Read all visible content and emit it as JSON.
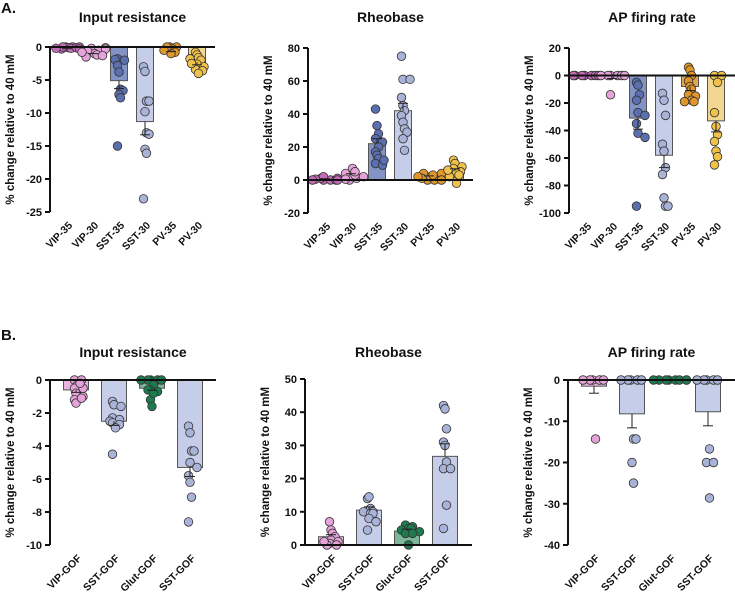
{
  "panel_letters": [
    "A.",
    "B."
  ],
  "chart_data": [
    {
      "type": "bar",
      "panel": "A",
      "title": "Input resistance",
      "ylabel": "% change relative to 40 mM",
      "ylim": [
        -25,
        0
      ],
      "yticks": [
        0,
        -5,
        -10,
        -15,
        -20,
        -25
      ],
      "categories": [
        "VIP-35",
        "VIP-30",
        "SST-35",
        "SST-30",
        "PV-35",
        "PV-30"
      ],
      "values": [
        -0.2,
        -0.8,
        -5.1,
        -11.3,
        -0.5,
        -2.3
      ],
      "sem": [
        0.05,
        0.2,
        1.2,
        2.0,
        0.2,
        0.4
      ],
      "points": [
        [
          0,
          0,
          -0.1,
          -0.2,
          -0.3,
          0,
          -0.1,
          -0.2,
          0,
          -0.3
        ],
        [
          -0.2,
          -0.5,
          -1.0,
          -1.2,
          -0.6,
          -0.1,
          -1.5,
          -0.8,
          -0.3,
          -1.3
        ],
        [
          -1.8,
          -2.0,
          -1.9,
          -2.8,
          -3.8,
          -6.4,
          -6.6,
          -7.2,
          -7.7,
          -15.0
        ],
        [
          -3.0,
          -3.7,
          -8.2,
          -8.2,
          -9.8,
          -13.0,
          -13.2,
          -15.5,
          -16.1,
          -23.0
        ],
        [
          0,
          0,
          -0.3,
          -0.8,
          -1.0,
          0,
          -0.5
        ],
        [
          -0.8,
          -1.2,
          -1.6,
          -2.0,
          -2.6,
          -3.0,
          -3.4,
          -3.6,
          -4.0,
          -1.8,
          -2.5
        ]
      ],
      "bar_colors": [
        "#c77bbd",
        "#e8b3de",
        "#8393c6",
        "#c6cde8",
        "#e0a655",
        "#f2d792"
      ],
      "point_colors": [
        "#c46bb8",
        "#e5a3d9",
        "#5b6fae",
        "#a9b3d8",
        "#e0962a",
        "#f0c24a"
      ]
    },
    {
      "type": "bar",
      "panel": "A",
      "title": "Rheobase",
      "ylabel": "% change relative to 40 mM",
      "ylim": [
        -20,
        80
      ],
      "yticks": [
        80,
        60,
        40,
        20,
        0,
        -20
      ],
      "categories": [
        "VIP-35",
        "VIP-30",
        "SST-35",
        "SST-30",
        "PV-35",
        "PV-30"
      ],
      "values": [
        0.5,
        3,
        22,
        42,
        2,
        5.5
      ],
      "sem": [
        0.3,
        0.8,
        3,
        4.5,
        0.5,
        1.3
      ],
      "points": [
        [
          0,
          0,
          1,
          2,
          0,
          0.5,
          1,
          0,
          0
        ],
        [
          0,
          1,
          2,
          3,
          4,
          7,
          5,
          0.5,
          2
        ],
        [
          43,
          33,
          28,
          25,
          23,
          20,
          17,
          15,
          13,
          10,
          9,
          12
        ],
        [
          75,
          61,
          61,
          50,
          45,
          42,
          39,
          35,
          31,
          29,
          25,
          18
        ],
        [
          0,
          0,
          2,
          3,
          4,
          4,
          1,
          2,
          0
        ],
        [
          12,
          10,
          8,
          7,
          5,
          4,
          3,
          2,
          -2,
          6
        ]
      ],
      "bar_colors": [
        "#c77bbd",
        "#e8b3de",
        "#8393c6",
        "#c6cde8",
        "#e0a655",
        "#f2d792"
      ],
      "point_colors": [
        "#c46bb8",
        "#e5a3d9",
        "#5b6fae",
        "#a9b3d8",
        "#e0962a",
        "#f0c24a"
      ]
    },
    {
      "type": "bar",
      "panel": "A",
      "title": "AP firing rate",
      "ylabel": "% change relative to 40 mM",
      "ylim": [
        -100,
        20
      ],
      "yticks": [
        20,
        0,
        -20,
        -40,
        -60,
        -80,
        -100
      ],
      "categories": [
        "VIP-35",
        "VIP-30",
        "SST-35",
        "SST-30",
        "PV-35",
        "PV-30"
      ],
      "values": [
        0,
        -1,
        -31,
        -58,
        -8,
        -33
      ],
      "sem": [
        0,
        1.2,
        8,
        9,
        3,
        8
      ],
      "points": [
        [
          0,
          0,
          0,
          0,
          0,
          0,
          0
        ],
        [
          0,
          0,
          0,
          0,
          0,
          0,
          -14
        ],
        [
          -5,
          -7,
          -14,
          -18,
          -27,
          -29,
          -35,
          -42,
          -45,
          -95
        ],
        [
          -13,
          -18,
          -29,
          -50,
          -55,
          -67,
          -72,
          -89,
          -95,
          -95
        ],
        [
          6,
          4,
          0,
          -4,
          -8,
          -10,
          -14,
          -15,
          -18,
          -19,
          -19
        ],
        [
          0,
          0,
          -5,
          -27,
          -37,
          -43,
          -48,
          -55,
          -59,
          -65
        ]
      ],
      "bar_colors": [
        "#c77bbd",
        "#e8b3de",
        "#8393c6",
        "#c6cde8",
        "#e0a655",
        "#f2d792"
      ],
      "point_colors": [
        "#c46bb8",
        "#e5a3d9",
        "#5b6fae",
        "#a9b3d8",
        "#e0962a",
        "#f0c24a"
      ]
    },
    {
      "type": "bar",
      "panel": "B",
      "title": "Input resistance",
      "ylabel": "% change relative to 40 mM",
      "ylim": [
        -10,
        0
      ],
      "yticks": [
        0,
        -2,
        -4,
        -6,
        -8,
        -10
      ],
      "categories": [
        "VIP-GOF",
        "SST-GOF",
        "Glut-GOF",
        "SST-GOF"
      ],
      "values": [
        -0.6,
        -2.5,
        -0.5,
        -5.3
      ],
      "sem": [
        0.15,
        0.25,
        0.12,
        0.55
      ],
      "points": [
        [
          0,
          0,
          -0.3,
          -0.5,
          -0.8,
          -1.0,
          -1.2,
          -1.4,
          -0.5,
          -0.2,
          -1.1
        ],
        [
          -1.3,
          -1.5,
          -1.6,
          -2.3,
          -2.4,
          -2.5,
          -2.6,
          -2.7,
          -2.9,
          -4.5
        ],
        [
          0,
          0,
          0,
          0,
          0,
          -0.3,
          -0.6,
          -0.7,
          -0.6,
          -1.2,
          -1.6,
          -0.8
        ],
        [
          -2.8,
          -3.2,
          -4.3,
          -4.3,
          -5.0,
          -5.3,
          -5.8,
          -6.2,
          -7.1,
          -8.6
        ]
      ],
      "bar_colors": [
        "#e8b3de",
        "#c6cde8",
        "#7fb59a",
        "#c6cde8"
      ],
      "point_colors": [
        "#e5a3d9",
        "#a9b3d8",
        "#1f7a4e",
        "#a9b3d8"
      ]
    },
    {
      "type": "bar",
      "panel": "B",
      "title": "Rheobase",
      "ylabel": "% change relative to 40 mM",
      "ylim": [
        0,
        50
      ],
      "yticks": [
        50,
        40,
        30,
        20,
        10,
        0
      ],
      "categories": [
        "VIP-GOF",
        "SST-GOF",
        "Glut-GOF",
        "SST-GOF"
      ],
      "values": [
        2.5,
        10.5,
        4.2,
        26.7
      ],
      "sem": [
        0.6,
        1.0,
        0.6,
        3.8
      ],
      "points": [
        [
          7,
          4.5,
          3.5,
          2.5,
          1.5,
          1,
          0.5,
          0,
          0,
          1
        ],
        [
          14,
          14.5,
          11,
          10,
          10,
          9.5,
          9.5,
          8,
          7,
          4.5
        ],
        [
          6,
          5.5,
          5,
          5,
          4.5,
          4,
          3.5,
          3.5,
          0
        ],
        [
          42,
          41,
          35,
          31,
          30,
          25,
          23,
          23,
          12,
          5
        ]
      ],
      "bar_colors": [
        "#e8b3de",
        "#c6cde8",
        "#7fb59a",
        "#c6cde8"
      ],
      "point_colors": [
        "#e5a3d9",
        "#a9b3d8",
        "#1f7a4e",
        "#a9b3d8"
      ]
    },
    {
      "type": "bar",
      "panel": "B",
      "title": "AP firing rate",
      "ylabel": "% change relative to 40 mM",
      "ylim": [
        -40,
        0
      ],
      "yticks": [
        0,
        -10,
        -20,
        -30,
        -40
      ],
      "categories": [
        "VIP-GOF",
        "SST-GOF",
        "Glut-GOF",
        "SST-GOF"
      ],
      "values": [
        -1.5,
        -8.2,
        0,
        -7.7
      ],
      "sem": [
        1.7,
        3.4,
        0,
        3.4
      ],
      "points": [
        [
          0,
          0,
          0,
          0,
          0,
          -14.3
        ],
        [
          0,
          0,
          0,
          0,
          0,
          -14.3,
          -14.3,
          -20,
          -25
        ],
        [
          0,
          0,
          0,
          0,
          0,
          0,
          0,
          0
        ],
        [
          0,
          0,
          0,
          0,
          0,
          -16.7,
          -20,
          -20,
          -28.6
        ]
      ],
      "bar_colors": [
        "#e8b3de",
        "#c6cde8",
        "#7fb59a",
        "#c6cde8"
      ],
      "point_colors": [
        "#e5a3d9",
        "#a9b3d8",
        "#1f7a4e",
        "#a9b3d8"
      ]
    }
  ]
}
